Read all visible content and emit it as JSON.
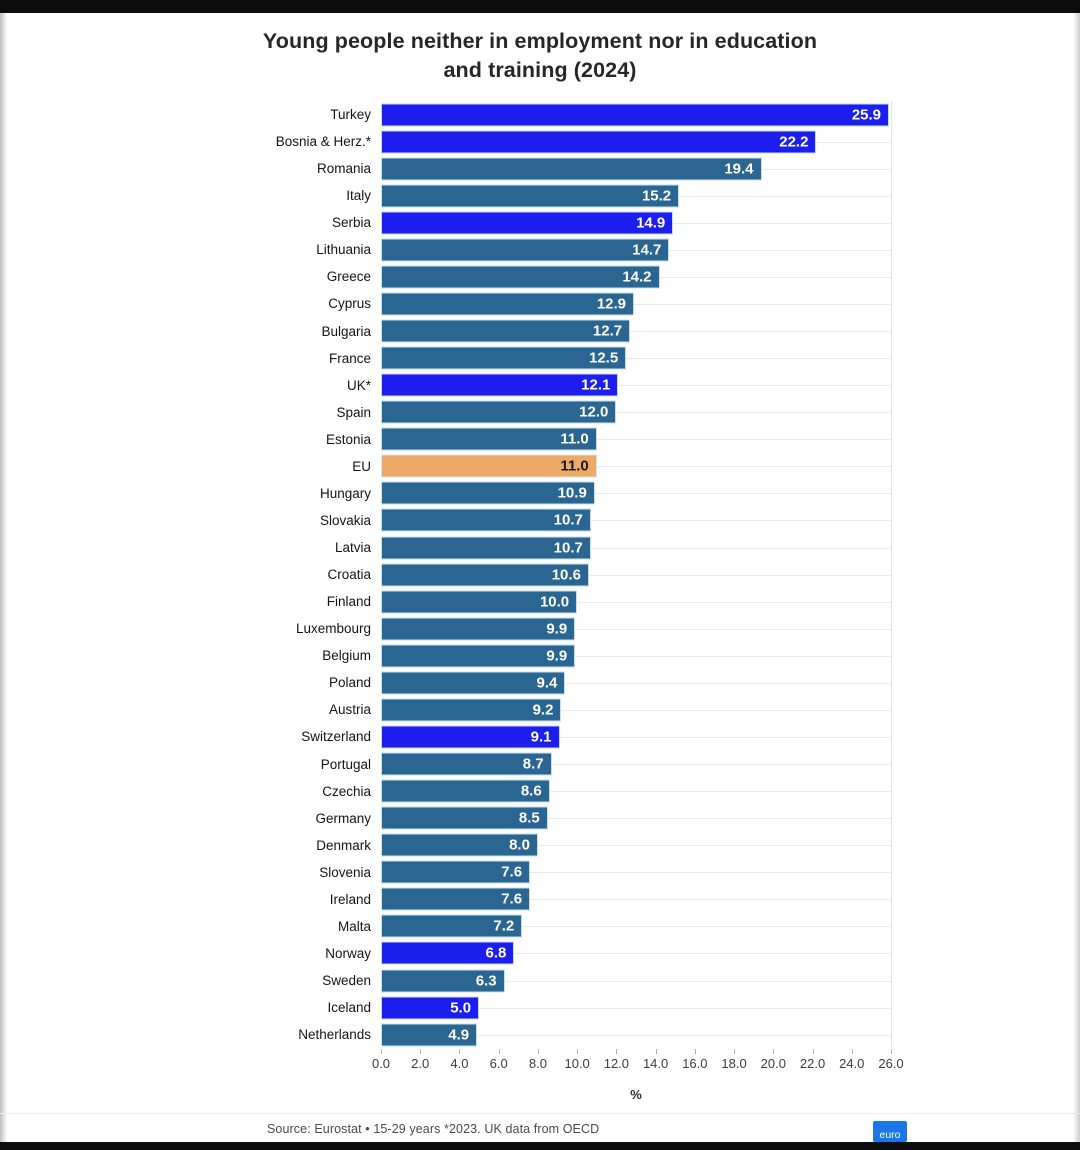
{
  "chart_data": {
    "type": "bar",
    "orientation": "horizontal",
    "title": "Young people neither in employment nor in education\nand training (2024)",
    "xlabel": "%",
    "xlim": [
      0,
      26
    ],
    "x_ticks": [
      "0.0",
      "2.0",
      "4.0",
      "6.0",
      "8.0",
      "10.0",
      "12.0",
      "14.0",
      "16.0",
      "18.0",
      "20.0",
      "22.0",
      "24.0",
      "26.0"
    ],
    "grid": "horizontal-row-lines",
    "legend": "none",
    "value_label_position": "inside-end",
    "colors": {
      "eu-member": "#2a6691",
      "non-eu": "#1c1eee",
      "eu-average": "#eda965",
      "value-text": "#ffffff",
      "value-text-eu-average": "#1a1a1a"
    },
    "rows": [
      {
        "label": "Turkey",
        "value": 25.9,
        "group": "non-eu"
      },
      {
        "label": "Bosnia & Herz.*",
        "value": 22.2,
        "group": "non-eu"
      },
      {
        "label": "Romania",
        "value": 19.4,
        "group": "eu-member"
      },
      {
        "label": "Italy",
        "value": 15.2,
        "group": "eu-member"
      },
      {
        "label": "Serbia",
        "value": 14.9,
        "group": "non-eu"
      },
      {
        "label": "Lithuania",
        "value": 14.7,
        "group": "eu-member"
      },
      {
        "label": "Greece",
        "value": 14.2,
        "group": "eu-member"
      },
      {
        "label": "Cyprus",
        "value": 12.9,
        "group": "eu-member"
      },
      {
        "label": "Bulgaria",
        "value": 12.7,
        "group": "eu-member"
      },
      {
        "label": "France",
        "value": 12.5,
        "group": "eu-member"
      },
      {
        "label": "UK*",
        "value": 12.1,
        "group": "non-eu"
      },
      {
        "label": "Spain",
        "value": 12.0,
        "group": "eu-member"
      },
      {
        "label": "Estonia",
        "value": 11.0,
        "group": "eu-member"
      },
      {
        "label": "EU",
        "value": 11.0,
        "group": "eu-average"
      },
      {
        "label": "Hungary",
        "value": 10.9,
        "group": "eu-member"
      },
      {
        "label": "Slovakia",
        "value": 10.7,
        "group": "eu-member"
      },
      {
        "label": "Latvia",
        "value": 10.7,
        "group": "eu-member"
      },
      {
        "label": "Croatia",
        "value": 10.6,
        "group": "eu-member"
      },
      {
        "label": "Finland",
        "value": 10.0,
        "group": "eu-member"
      },
      {
        "label": "Luxembourg",
        "value": 9.9,
        "group": "eu-member"
      },
      {
        "label": "Belgium",
        "value": 9.9,
        "group": "eu-member"
      },
      {
        "label": "Poland",
        "value": 9.4,
        "group": "eu-member"
      },
      {
        "label": "Austria",
        "value": 9.2,
        "group": "eu-member"
      },
      {
        "label": "Switzerland",
        "value": 9.1,
        "group": "non-eu"
      },
      {
        "label": "Portugal",
        "value": 8.7,
        "group": "eu-member"
      },
      {
        "label": "Czechia",
        "value": 8.6,
        "group": "eu-member"
      },
      {
        "label": "Germany",
        "value": 8.5,
        "group": "eu-member"
      },
      {
        "label": "Denmark",
        "value": 8.0,
        "group": "eu-member"
      },
      {
        "label": "Slovenia",
        "value": 7.6,
        "group": "eu-member"
      },
      {
        "label": "Ireland",
        "value": 7.6,
        "group": "eu-member"
      },
      {
        "label": "Malta",
        "value": 7.2,
        "group": "eu-member"
      },
      {
        "label": "Norway",
        "value": 6.8,
        "group": "non-eu"
      },
      {
        "label": "Sweden",
        "value": 6.3,
        "group": "eu-member"
      },
      {
        "label": "Iceland",
        "value": 5.0,
        "group": "non-eu"
      },
      {
        "label": "Netherlands",
        "value": 4.9,
        "group": "eu-member"
      }
    ]
  },
  "footer": {
    "source": "Source: Eurostat • 15-29 years *2023. UK data from OECD",
    "logo_text": "euro",
    "logo_color": "#1b77e8"
  }
}
